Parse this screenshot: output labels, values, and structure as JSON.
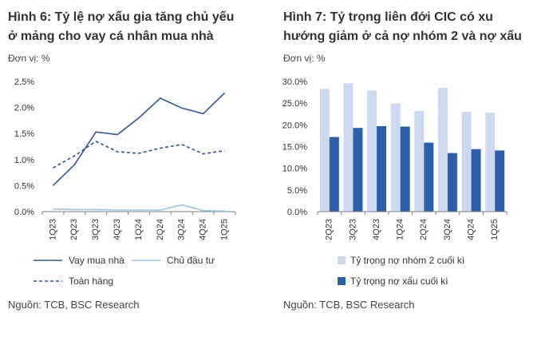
{
  "left": {
    "title_line1": "Hình 6:  Tỷ lệ nợ xấu gia tăng chủ yếu",
    "title_line2": "ở mảng cho vay cá nhân mua nhà",
    "unit": "Đơn vị: %",
    "source": "Nguồn: TCB, BSC Research"
  },
  "right": {
    "title_line1": "Hình 7: Tỷ trọng liên đới CIC có xu",
    "title_line2": "hướng giảm ở cả nợ nhóm 2 và nợ xấu",
    "unit": "Đơn vị: %",
    "source": "Nguồn: TCB, BSC Research"
  },
  "colors": {
    "dark_blue": "#2f5597",
    "light_blue": "#9dc3e6",
    "bar_light": "#cdd9f0",
    "bar_dark": "#2e5fa9",
    "axis": "#7f7f7f"
  },
  "chart_data": [
    {
      "type": "line",
      "categories": [
        "1Q23",
        "2Q23",
        "3Q23",
        "4Q23",
        "1Q24",
        "2Q24",
        "3Q24",
        "4Q24",
        "1Q25"
      ],
      "series": [
        {
          "name": "Vay mua nhà",
          "style": "solid",
          "color": "#2f5597",
          "values": [
            0.5,
            0.9,
            1.53,
            1.48,
            1.8,
            2.18,
            1.99,
            1.88,
            2.28
          ]
        },
        {
          "name": "Chủ đầu tư",
          "style": "solid",
          "color": "#9dc3e6",
          "values": [
            0.05,
            0.04,
            0.04,
            0.03,
            0.03,
            0.03,
            0.13,
            0.02,
            0.01
          ]
        },
        {
          "name": "Toàn hàng",
          "style": "dashed",
          "color": "#2f5597",
          "values": [
            0.84,
            1.07,
            1.35,
            1.15,
            1.12,
            1.22,
            1.29,
            1.11,
            1.17
          ]
        }
      ],
      "yticks": [
        "0.0%",
        "0.5%",
        "1.0%",
        "1.5%",
        "2.0%",
        "2.5%"
      ],
      "ylim": [
        0,
        2.5
      ],
      "legend": "bottom"
    },
    {
      "type": "bar",
      "categories": [
        "2Q23",
        "3Q23",
        "4Q23",
        "1Q24",
        "2Q24",
        "3Q24",
        "4Q24",
        "1Q25"
      ],
      "series": [
        {
          "name": "Tỷ trọng nợ nhóm 2 cuối kì",
          "color": "#cdd9f0",
          "values": [
            28.3,
            29.6,
            27.9,
            24.9,
            23.2,
            28.5,
            23.0,
            22.8
          ]
        },
        {
          "name": "Tỷ trọng nợ xấu cuối kì",
          "color": "#2e5fa9",
          "values": [
            17.2,
            19.3,
            19.7,
            19.6,
            15.9,
            13.5,
            14.4,
            14.1
          ]
        }
      ],
      "yticks": [
        "0.0%",
        "5.0%",
        "10.0%",
        "15.0%",
        "20.0%",
        "25.0%",
        "30.0%"
      ],
      "ylim": [
        0,
        30
      ],
      "legend": "bottom"
    }
  ]
}
